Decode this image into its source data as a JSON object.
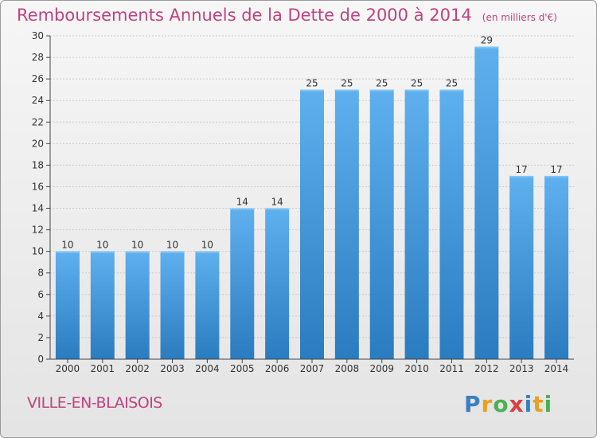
{
  "header": {
    "title": "Remboursements Annuels de la Dette de 2000 à 2014",
    "unit": "(en milliers d'€)"
  },
  "footer": {
    "commune": "VILLE-EN-BLAISOIS",
    "logo": "Proxiti",
    "logo_letters": [
      {
        "ch": "P",
        "color": "#3a7fc4"
      },
      {
        "ch": "r",
        "color": "#e8a020"
      },
      {
        "ch": "o",
        "color": "#4caf50"
      },
      {
        "ch": "x",
        "color": "#d94040"
      },
      {
        "ch": "i",
        "color": "#3a7fc4"
      },
      {
        "ch": "t",
        "color": "#e8a020"
      },
      {
        "ch": "i",
        "color": "#4caf50"
      }
    ]
  },
  "colors": {
    "accent": "#c0427f",
    "bar_light": "#5aaaea",
    "bar_dark": "#2a7cc0",
    "grid": "#cccccc",
    "axis": "#444444"
  },
  "chart_data": {
    "type": "bar",
    "title": "Remboursements Annuels de la Dette de 2000 à 2014",
    "xlabel": "",
    "ylabel": "en milliers d'€",
    "categories": [
      "2000",
      "2001",
      "2002",
      "2003",
      "2004",
      "2005",
      "2006",
      "2007",
      "2008",
      "2009",
      "2010",
      "2011",
      "2012",
      "2013",
      "2014"
    ],
    "values": [
      10,
      10,
      10,
      10,
      10,
      14,
      14,
      25,
      25,
      25,
      25,
      25,
      29,
      17,
      17
    ],
    "ylim": [
      0,
      30
    ],
    "yticks": [
      0,
      2,
      4,
      6,
      8,
      10,
      12,
      14,
      16,
      18,
      20,
      22,
      24,
      26,
      28,
      30
    ],
    "grid": true,
    "legend": "none"
  }
}
